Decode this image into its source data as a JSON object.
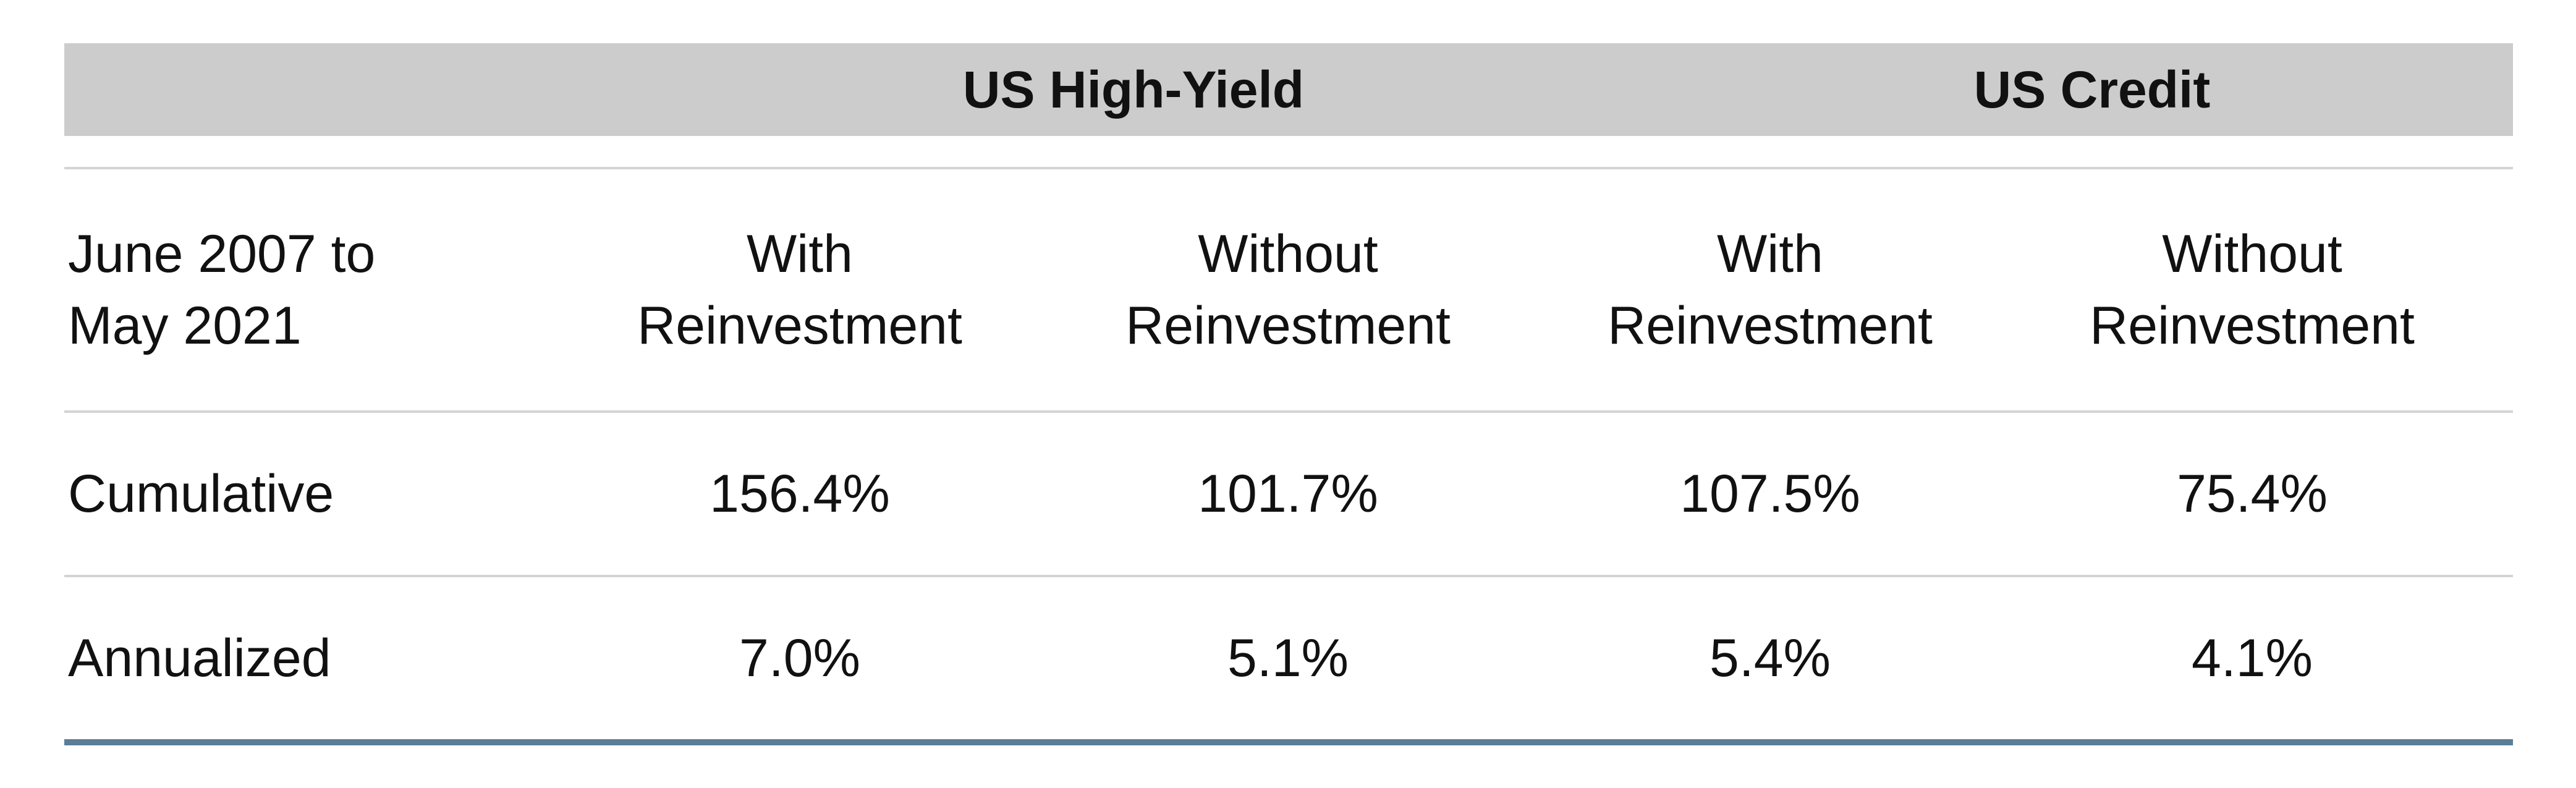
{
  "table": {
    "group_headers": {
      "high_yield": "US High-Yield",
      "credit": "US Credit"
    },
    "subheader": {
      "period_line1": "June 2007 to",
      "period_line2": "May 2021",
      "columns": [
        {
          "line1": "With",
          "line2": "Reinvestment"
        },
        {
          "line1": "Without",
          "line2": "Reinvestment"
        },
        {
          "line1": "With",
          "line2": "Reinvestment"
        },
        {
          "line1": "Without",
          "line2": "Reinvestment"
        }
      ]
    },
    "rows": [
      {
        "label": "Cumulative",
        "values": [
          "156.4%",
          "101.7%",
          "107.5%",
          "75.4%"
        ]
      },
      {
        "label": "Annualized",
        "values": [
          "7.0%",
          "5.1%",
          "5.4%",
          "4.1%"
        ]
      }
    ],
    "colors": {
      "header_bg": "#cccccc",
      "divider": "#d4d4d4",
      "bottom_rule": "#5c7d97"
    }
  }
}
